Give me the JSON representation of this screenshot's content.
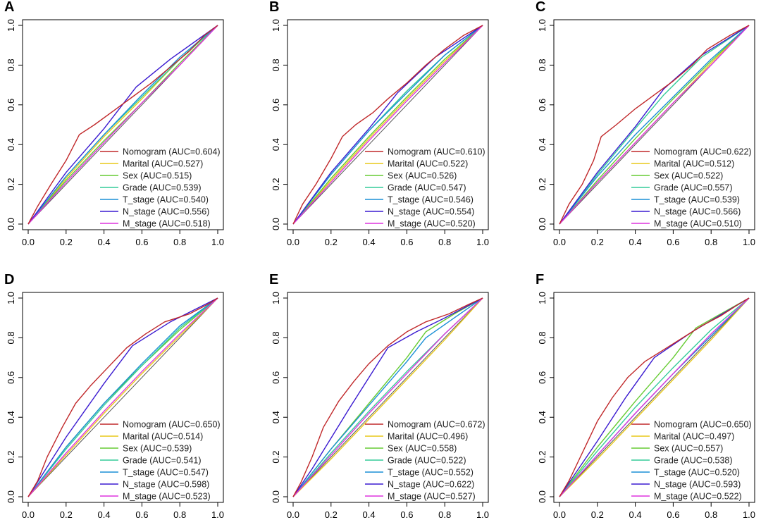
{
  "figure": {
    "legend_placement": "bottom-right",
    "series_styles": [
      {
        "name": "Nomogram",
        "color": "#c0282a"
      },
      {
        "name": "Marital",
        "color": "#e8c81a"
      },
      {
        "name": "Sex",
        "color": "#66cc33"
      },
      {
        "name": "Grade",
        "color": "#33cc99"
      },
      {
        "name": "T_stage",
        "color": "#1a8fd6"
      },
      {
        "name": "N_stage",
        "color": "#3a1ad0"
      },
      {
        "name": "M_stage",
        "color": "#dd33dd"
      }
    ],
    "reference_line_color": "#555555"
  },
  "chart_data": [
    {
      "panel": "A",
      "type": "line",
      "xlim": [
        0,
        1
      ],
      "ylim": [
        0,
        1
      ],
      "xticks": [
        "0.0",
        "0.2",
        "0.4",
        "0.6",
        "0.8",
        "1.0"
      ],
      "yticks": [
        "0.0",
        "0.2",
        "0.4",
        "0.6",
        "0.8",
        "1.0"
      ],
      "legend": [
        "Nomogram (AUC=0.604)",
        "Marital (AUC=0.527)",
        "Sex (AUC=0.515)",
        "Grade (AUC=0.539)",
        "T_stage (AUC=0.540)",
        "N_stage (AUC=0.556)",
        "M_stage (AUC=0.518)"
      ],
      "series": [
        {
          "name": "Nomogram",
          "x": [
            0,
            0.05,
            0.12,
            0.2,
            0.27,
            0.35,
            0.45,
            0.55,
            0.65,
            0.75,
            0.85,
            0.93,
            1
          ],
          "y": [
            0,
            0.09,
            0.2,
            0.32,
            0.45,
            0.5,
            0.57,
            0.64,
            0.71,
            0.79,
            0.87,
            0.95,
            1
          ]
        },
        {
          "name": "Marital",
          "x": [
            0,
            0.2,
            0.4,
            0.6,
            0.8,
            1
          ],
          "y": [
            0,
            0.23,
            0.44,
            0.63,
            0.83,
            1
          ]
        },
        {
          "name": "Sex",
          "x": [
            0,
            0.2,
            0.4,
            0.6,
            0.8,
            1
          ],
          "y": [
            0,
            0.22,
            0.42,
            0.61,
            0.81,
            1
          ]
        },
        {
          "name": "Grade",
          "x": [
            0,
            0.2,
            0.4,
            0.6,
            0.8,
            1
          ],
          "y": [
            0,
            0.24,
            0.45,
            0.64,
            0.83,
            1
          ]
        },
        {
          "name": "T_stage",
          "x": [
            0,
            0.2,
            0.4,
            0.6,
            0.8,
            1
          ],
          "y": [
            0,
            0.24,
            0.45,
            0.65,
            0.84,
            1
          ]
        },
        {
          "name": "N_stage",
          "x": [
            0,
            0.2,
            0.4,
            0.57,
            0.75,
            1
          ],
          "y": [
            0,
            0.26,
            0.48,
            0.69,
            0.83,
            1
          ]
        },
        {
          "name": "M_stage",
          "x": [
            0,
            0.2,
            0.4,
            0.6,
            0.8,
            1
          ],
          "y": [
            0,
            0.21,
            0.41,
            0.61,
            0.8,
            1
          ]
        }
      ]
    },
    {
      "panel": "B",
      "type": "line",
      "xlim": [
        0,
        1
      ],
      "ylim": [
        0,
        1
      ],
      "xticks": [
        "0.0",
        "0.2",
        "0.4",
        "0.6",
        "0.8",
        "1.0"
      ],
      "yticks": [
        "0.0",
        "0.2",
        "0.4",
        "0.6",
        "0.8",
        "1.0"
      ],
      "legend": [
        "Nomogram (AUC=0.610)",
        "Marital (AUC=0.522)",
        "Sex (AUC=0.526)",
        "Grade (AUC=0.547)",
        "T_stage (AUC=0.546)",
        "N_stage (AUC=0.554)",
        "M_stage (AUC=0.520)"
      ],
      "series": [
        {
          "name": "Nomogram",
          "x": [
            0,
            0.05,
            0.12,
            0.2,
            0.26,
            0.33,
            0.42,
            0.5,
            0.6,
            0.7,
            0.8,
            0.9,
            1
          ],
          "y": [
            0,
            0.1,
            0.2,
            0.33,
            0.44,
            0.5,
            0.56,
            0.63,
            0.71,
            0.8,
            0.88,
            0.95,
            1
          ]
        },
        {
          "name": "Marital",
          "x": [
            0,
            0.2,
            0.4,
            0.6,
            0.8,
            1
          ],
          "y": [
            0,
            0.22,
            0.43,
            0.63,
            0.82,
            1
          ]
        },
        {
          "name": "Sex",
          "x": [
            0,
            0.2,
            0.4,
            0.6,
            0.8,
            1
          ],
          "y": [
            0,
            0.23,
            0.44,
            0.64,
            0.83,
            1
          ]
        },
        {
          "name": "Grade",
          "x": [
            0,
            0.2,
            0.4,
            0.6,
            0.8,
            1
          ],
          "y": [
            0,
            0.25,
            0.47,
            0.67,
            0.85,
            1
          ]
        },
        {
          "name": "T_stage",
          "x": [
            0,
            0.2,
            0.4,
            0.6,
            0.8,
            1
          ],
          "y": [
            0,
            0.25,
            0.47,
            0.66,
            0.85,
            1
          ]
        },
        {
          "name": "N_stage",
          "x": [
            0,
            0.2,
            0.4,
            0.55,
            0.75,
            1
          ],
          "y": [
            0,
            0.26,
            0.48,
            0.66,
            0.84,
            1
          ]
        },
        {
          "name": "M_stage",
          "x": [
            0,
            0.2,
            0.4,
            0.6,
            0.8,
            1
          ],
          "y": [
            0,
            0.21,
            0.42,
            0.62,
            0.81,
            1
          ]
        }
      ]
    },
    {
      "panel": "C",
      "type": "line",
      "xlim": [
        0,
        1
      ],
      "ylim": [
        0,
        1
      ],
      "xticks": [
        "0.0",
        "0.2",
        "0.4",
        "0.6",
        "0.8",
        "1.0"
      ],
      "yticks": [
        "0.0",
        "0.2",
        "0.4",
        "0.6",
        "0.8",
        "1.0"
      ],
      "legend": [
        "Nomogram (AUC=0.622)",
        "Marital (AUC=0.512)",
        "Sex (AUC=0.522)",
        "Grade (AUC=0.557)",
        "T_stage (AUC=0.539)",
        "N_stage (AUC=0.566)",
        "M_stage (AUC=0.510)"
      ],
      "series": [
        {
          "name": "Nomogram",
          "x": [
            0,
            0.05,
            0.12,
            0.18,
            0.22,
            0.3,
            0.4,
            0.5,
            0.6,
            0.7,
            0.78,
            0.9,
            1
          ],
          "y": [
            0,
            0.1,
            0.2,
            0.32,
            0.44,
            0.5,
            0.58,
            0.65,
            0.72,
            0.8,
            0.88,
            0.95,
            1
          ]
        },
        {
          "name": "Marital",
          "x": [
            0,
            0.2,
            0.4,
            0.6,
            0.8,
            1
          ],
          "y": [
            0,
            0.21,
            0.41,
            0.61,
            0.81,
            1
          ]
        },
        {
          "name": "Sex",
          "x": [
            0,
            0.2,
            0.4,
            0.6,
            0.8,
            1
          ],
          "y": [
            0,
            0.22,
            0.43,
            0.63,
            0.82,
            1
          ]
        },
        {
          "name": "Grade",
          "x": [
            0,
            0.2,
            0.4,
            0.55,
            0.75,
            1
          ],
          "y": [
            0,
            0.25,
            0.48,
            0.65,
            0.84,
            1
          ]
        },
        {
          "name": "T_stage",
          "x": [
            0,
            0.2,
            0.4,
            0.6,
            0.8,
            1
          ],
          "y": [
            0,
            0.24,
            0.45,
            0.64,
            0.83,
            1
          ]
        },
        {
          "name": "N_stage",
          "x": [
            0,
            0.2,
            0.4,
            0.55,
            0.75,
            1
          ],
          "y": [
            0,
            0.26,
            0.49,
            0.68,
            0.85,
            1
          ]
        },
        {
          "name": "M_stage",
          "x": [
            0,
            0.2,
            0.4,
            0.6,
            0.8,
            1
          ],
          "y": [
            0,
            0.21,
            0.41,
            0.61,
            0.8,
            1
          ]
        }
      ]
    },
    {
      "panel": "D",
      "type": "line",
      "xlim": [
        0,
        1
      ],
      "ylim": [
        0,
        1
      ],
      "xticks": [
        "0.0",
        "0.2",
        "0.4",
        "0.6",
        "0.8",
        "1.0"
      ],
      "yticks": [
        "0.0",
        "0.2",
        "0.4",
        "0.6",
        "0.8",
        "1.0"
      ],
      "legend": [
        "Nomogram (AUC=0.650)",
        "Marital (AUC=0.514)",
        "Sex (AUC=0.539)",
        "Grade (AUC=0.541)",
        "T_stage (AUC=0.547)",
        "N_stage (AUC=0.598)",
        "M_stage (AUC=0.523)"
      ],
      "series": [
        {
          "name": "Nomogram",
          "x": [
            0,
            0.05,
            0.1,
            0.18,
            0.25,
            0.33,
            0.42,
            0.52,
            0.62,
            0.72,
            0.85,
            0.95,
            1
          ],
          "y": [
            0,
            0.08,
            0.2,
            0.35,
            0.47,
            0.56,
            0.65,
            0.75,
            0.82,
            0.88,
            0.92,
            0.97,
            1
          ]
        },
        {
          "name": "Marital",
          "x": [
            0,
            0.2,
            0.4,
            0.6,
            0.8,
            1
          ],
          "y": [
            0,
            0.21,
            0.42,
            0.62,
            0.81,
            1
          ]
        },
        {
          "name": "Sex",
          "x": [
            0,
            0.2,
            0.4,
            0.6,
            0.8,
            1
          ],
          "y": [
            0,
            0.25,
            0.47,
            0.66,
            0.84,
            1
          ]
        },
        {
          "name": "Grade",
          "x": [
            0,
            0.2,
            0.4,
            0.6,
            0.8,
            1
          ],
          "y": [
            0,
            0.24,
            0.46,
            0.66,
            0.85,
            1
          ]
        },
        {
          "name": "T_stage",
          "x": [
            0,
            0.2,
            0.4,
            0.6,
            0.8,
            1
          ],
          "y": [
            0,
            0.25,
            0.47,
            0.67,
            0.86,
            1
          ]
        },
        {
          "name": "N_stage",
          "x": [
            0,
            0.2,
            0.4,
            0.55,
            0.75,
            1
          ],
          "y": [
            0,
            0.3,
            0.57,
            0.76,
            0.88,
            1
          ]
        },
        {
          "name": "M_stage",
          "x": [
            0,
            0.2,
            0.4,
            0.6,
            0.8,
            1
          ],
          "y": [
            0,
            0.22,
            0.43,
            0.63,
            0.82,
            1
          ]
        }
      ]
    },
    {
      "panel": "E",
      "type": "line",
      "xlim": [
        0,
        1
      ],
      "ylim": [
        0,
        1
      ],
      "xticks": [
        "0.0",
        "0.2",
        "0.4",
        "0.6",
        "0.8",
        "1.0"
      ],
      "yticks": [
        "0.0",
        "0.2",
        "0.4",
        "0.6",
        "0.8",
        "1.0"
      ],
      "legend": [
        "Nomogram (AUC=0.672)",
        "Marital (AUC=0.496)",
        "Sex (AUC=0.558)",
        "Grade (AUC=0.522)",
        "T_stage (AUC=0.552)",
        "N_stage (AUC=0.622)",
        "M_stage (AUC=0.527)"
      ],
      "series": [
        {
          "name": "Nomogram",
          "x": [
            0,
            0.04,
            0.1,
            0.16,
            0.24,
            0.32,
            0.4,
            0.5,
            0.6,
            0.7,
            0.82,
            0.93,
            1
          ],
          "y": [
            0,
            0.07,
            0.2,
            0.35,
            0.48,
            0.58,
            0.67,
            0.76,
            0.83,
            0.88,
            0.92,
            0.97,
            1
          ]
        },
        {
          "name": "Marital",
          "x": [
            0,
            0.2,
            0.4,
            0.6,
            0.8,
            1
          ],
          "y": [
            0,
            0.19,
            0.39,
            0.59,
            0.79,
            1
          ]
        },
        {
          "name": "Sex",
          "x": [
            0,
            0.2,
            0.4,
            0.6,
            0.7,
            0.85,
            1
          ],
          "y": [
            0,
            0.24,
            0.47,
            0.7,
            0.83,
            0.92,
            1
          ]
        },
        {
          "name": "Grade",
          "x": [
            0,
            0.2,
            0.4,
            0.6,
            0.8,
            1
          ],
          "y": [
            0,
            0.22,
            0.43,
            0.63,
            0.82,
            1
          ]
        },
        {
          "name": "T_stage",
          "x": [
            0,
            0.2,
            0.4,
            0.6,
            0.7,
            0.85,
            1
          ],
          "y": [
            0,
            0.24,
            0.46,
            0.68,
            0.8,
            0.9,
            1
          ]
        },
        {
          "name": "N_stage",
          "x": [
            0,
            0.1,
            0.3,
            0.5,
            0.65,
            0.8,
            1
          ],
          "y": [
            0,
            0.14,
            0.45,
            0.75,
            0.83,
            0.9,
            1
          ]
        },
        {
          "name": "M_stage",
          "x": [
            0,
            0.2,
            0.4,
            0.6,
            0.8,
            1
          ],
          "y": [
            0,
            0.21,
            0.42,
            0.62,
            0.82,
            1
          ]
        }
      ]
    },
    {
      "panel": "F",
      "type": "line",
      "xlim": [
        0,
        1
      ],
      "ylim": [
        0,
        1
      ],
      "xticks": [
        "0.0",
        "0.2",
        "0.4",
        "0.6",
        "0.8",
        "1.0"
      ],
      "yticks": [
        "0.0",
        "0.2",
        "0.4",
        "0.6",
        "0.8",
        "1.0"
      ],
      "legend": [
        "Nomogram (AUC=0.650)",
        "Marital (AUC=0.497)",
        "Sex (AUC=0.557)",
        "Grade (AUC=0.538)",
        "T_stage (AUC=0.520)",
        "N_stage (AUC=0.593)",
        "M_stage (AUC=0.522)"
      ],
      "series": [
        {
          "name": "Nomogram",
          "x": [
            0,
            0.05,
            0.12,
            0.2,
            0.28,
            0.36,
            0.45,
            0.55,
            0.65,
            0.75,
            0.85,
            0.93,
            1
          ],
          "y": [
            0,
            0.08,
            0.22,
            0.38,
            0.5,
            0.6,
            0.68,
            0.74,
            0.8,
            0.86,
            0.91,
            0.96,
            1
          ]
        },
        {
          "name": "Marital",
          "x": [
            0,
            0.2,
            0.4,
            0.6,
            0.8,
            1
          ],
          "y": [
            0,
            0.19,
            0.39,
            0.59,
            0.79,
            1
          ]
        },
        {
          "name": "Sex",
          "x": [
            0,
            0.2,
            0.4,
            0.6,
            0.72,
            0.85,
            1
          ],
          "y": [
            0,
            0.25,
            0.48,
            0.7,
            0.85,
            0.92,
            1
          ]
        },
        {
          "name": "Grade",
          "x": [
            0,
            0.2,
            0.4,
            0.6,
            0.8,
            1
          ],
          "y": [
            0,
            0.23,
            0.45,
            0.65,
            0.84,
            1
          ]
        },
        {
          "name": "T_stage",
          "x": [
            0,
            0.2,
            0.4,
            0.6,
            0.8,
            1
          ],
          "y": [
            0,
            0.21,
            0.42,
            0.62,
            0.81,
            1
          ]
        },
        {
          "name": "N_stage",
          "x": [
            0,
            0.2,
            0.35,
            0.5,
            0.7,
            1
          ],
          "y": [
            0,
            0.28,
            0.5,
            0.7,
            0.83,
            1
          ]
        },
        {
          "name": "M_stage",
          "x": [
            0,
            0.2,
            0.4,
            0.6,
            0.8,
            1
          ],
          "y": [
            0,
            0.21,
            0.42,
            0.62,
            0.82,
            1
          ]
        }
      ]
    }
  ]
}
